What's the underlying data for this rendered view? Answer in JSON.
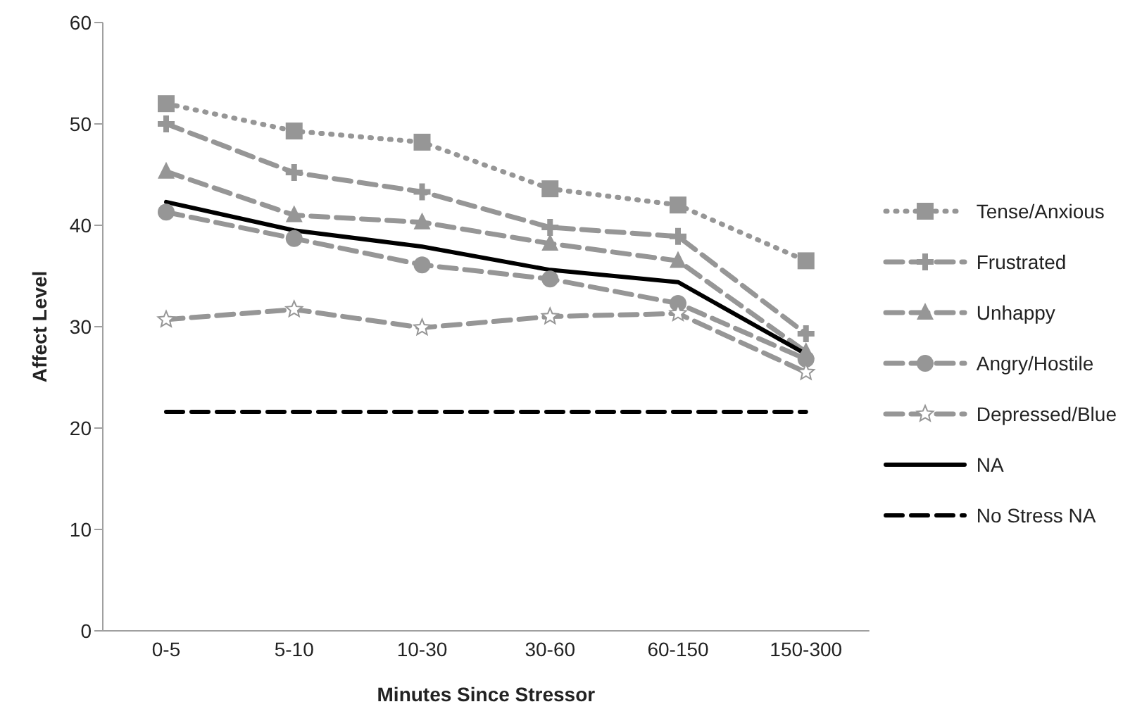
{
  "chart_data": {
    "type": "line",
    "xlabel": "Minutes Since Stressor",
    "ylabel": "Affect Level",
    "categories": [
      "0-5",
      "5-10",
      "10-30",
      "30-60",
      "60-150",
      "150-300"
    ],
    "ylim": [
      0,
      60
    ],
    "yticks": [
      0,
      10,
      20,
      30,
      40,
      50,
      60
    ],
    "grid": false,
    "legend": "right",
    "series": [
      {
        "name": "Tense/Anxious",
        "color": "#969696",
        "marker": "square",
        "line_style": "dotted",
        "values": [
          52,
          49.3,
          48.2,
          43.6,
          42.0,
          36.5
        ]
      },
      {
        "name": "Frustrated",
        "color": "#969696",
        "marker": "cross",
        "line_style": "dashed",
        "values": [
          50,
          45.2,
          43.3,
          39.8,
          38.9,
          29.3
        ]
      },
      {
        "name": "Unhappy",
        "color": "#969696",
        "marker": "triangle",
        "line_style": "dashed",
        "values": [
          45.3,
          41.0,
          40.3,
          38.2,
          36.5,
          27.5
        ]
      },
      {
        "name": "Angry/Hostile",
        "color": "#969696",
        "marker": "circle",
        "line_style": "dashed",
        "values": [
          41.3,
          38.7,
          36.1,
          34.7,
          32.3,
          26.8
        ]
      },
      {
        "name": "Depressed/Blue",
        "color": "#969696",
        "marker": "star",
        "line_style": "dashed",
        "values": [
          30.7,
          31.7,
          29.9,
          31.0,
          31.3,
          25.5
        ]
      },
      {
        "name": "NA",
        "color": "#000000",
        "marker": "none",
        "line_style": "solid",
        "values": [
          42.3,
          39.5,
          37.9,
          35.6,
          34.4,
          27.3
        ]
      },
      {
        "name": "No Stress NA",
        "color": "#000000",
        "marker": "none",
        "line_style": "dashed",
        "values": [
          21.6,
          21.6,
          21.6,
          21.6,
          21.6,
          21.6
        ]
      }
    ]
  }
}
